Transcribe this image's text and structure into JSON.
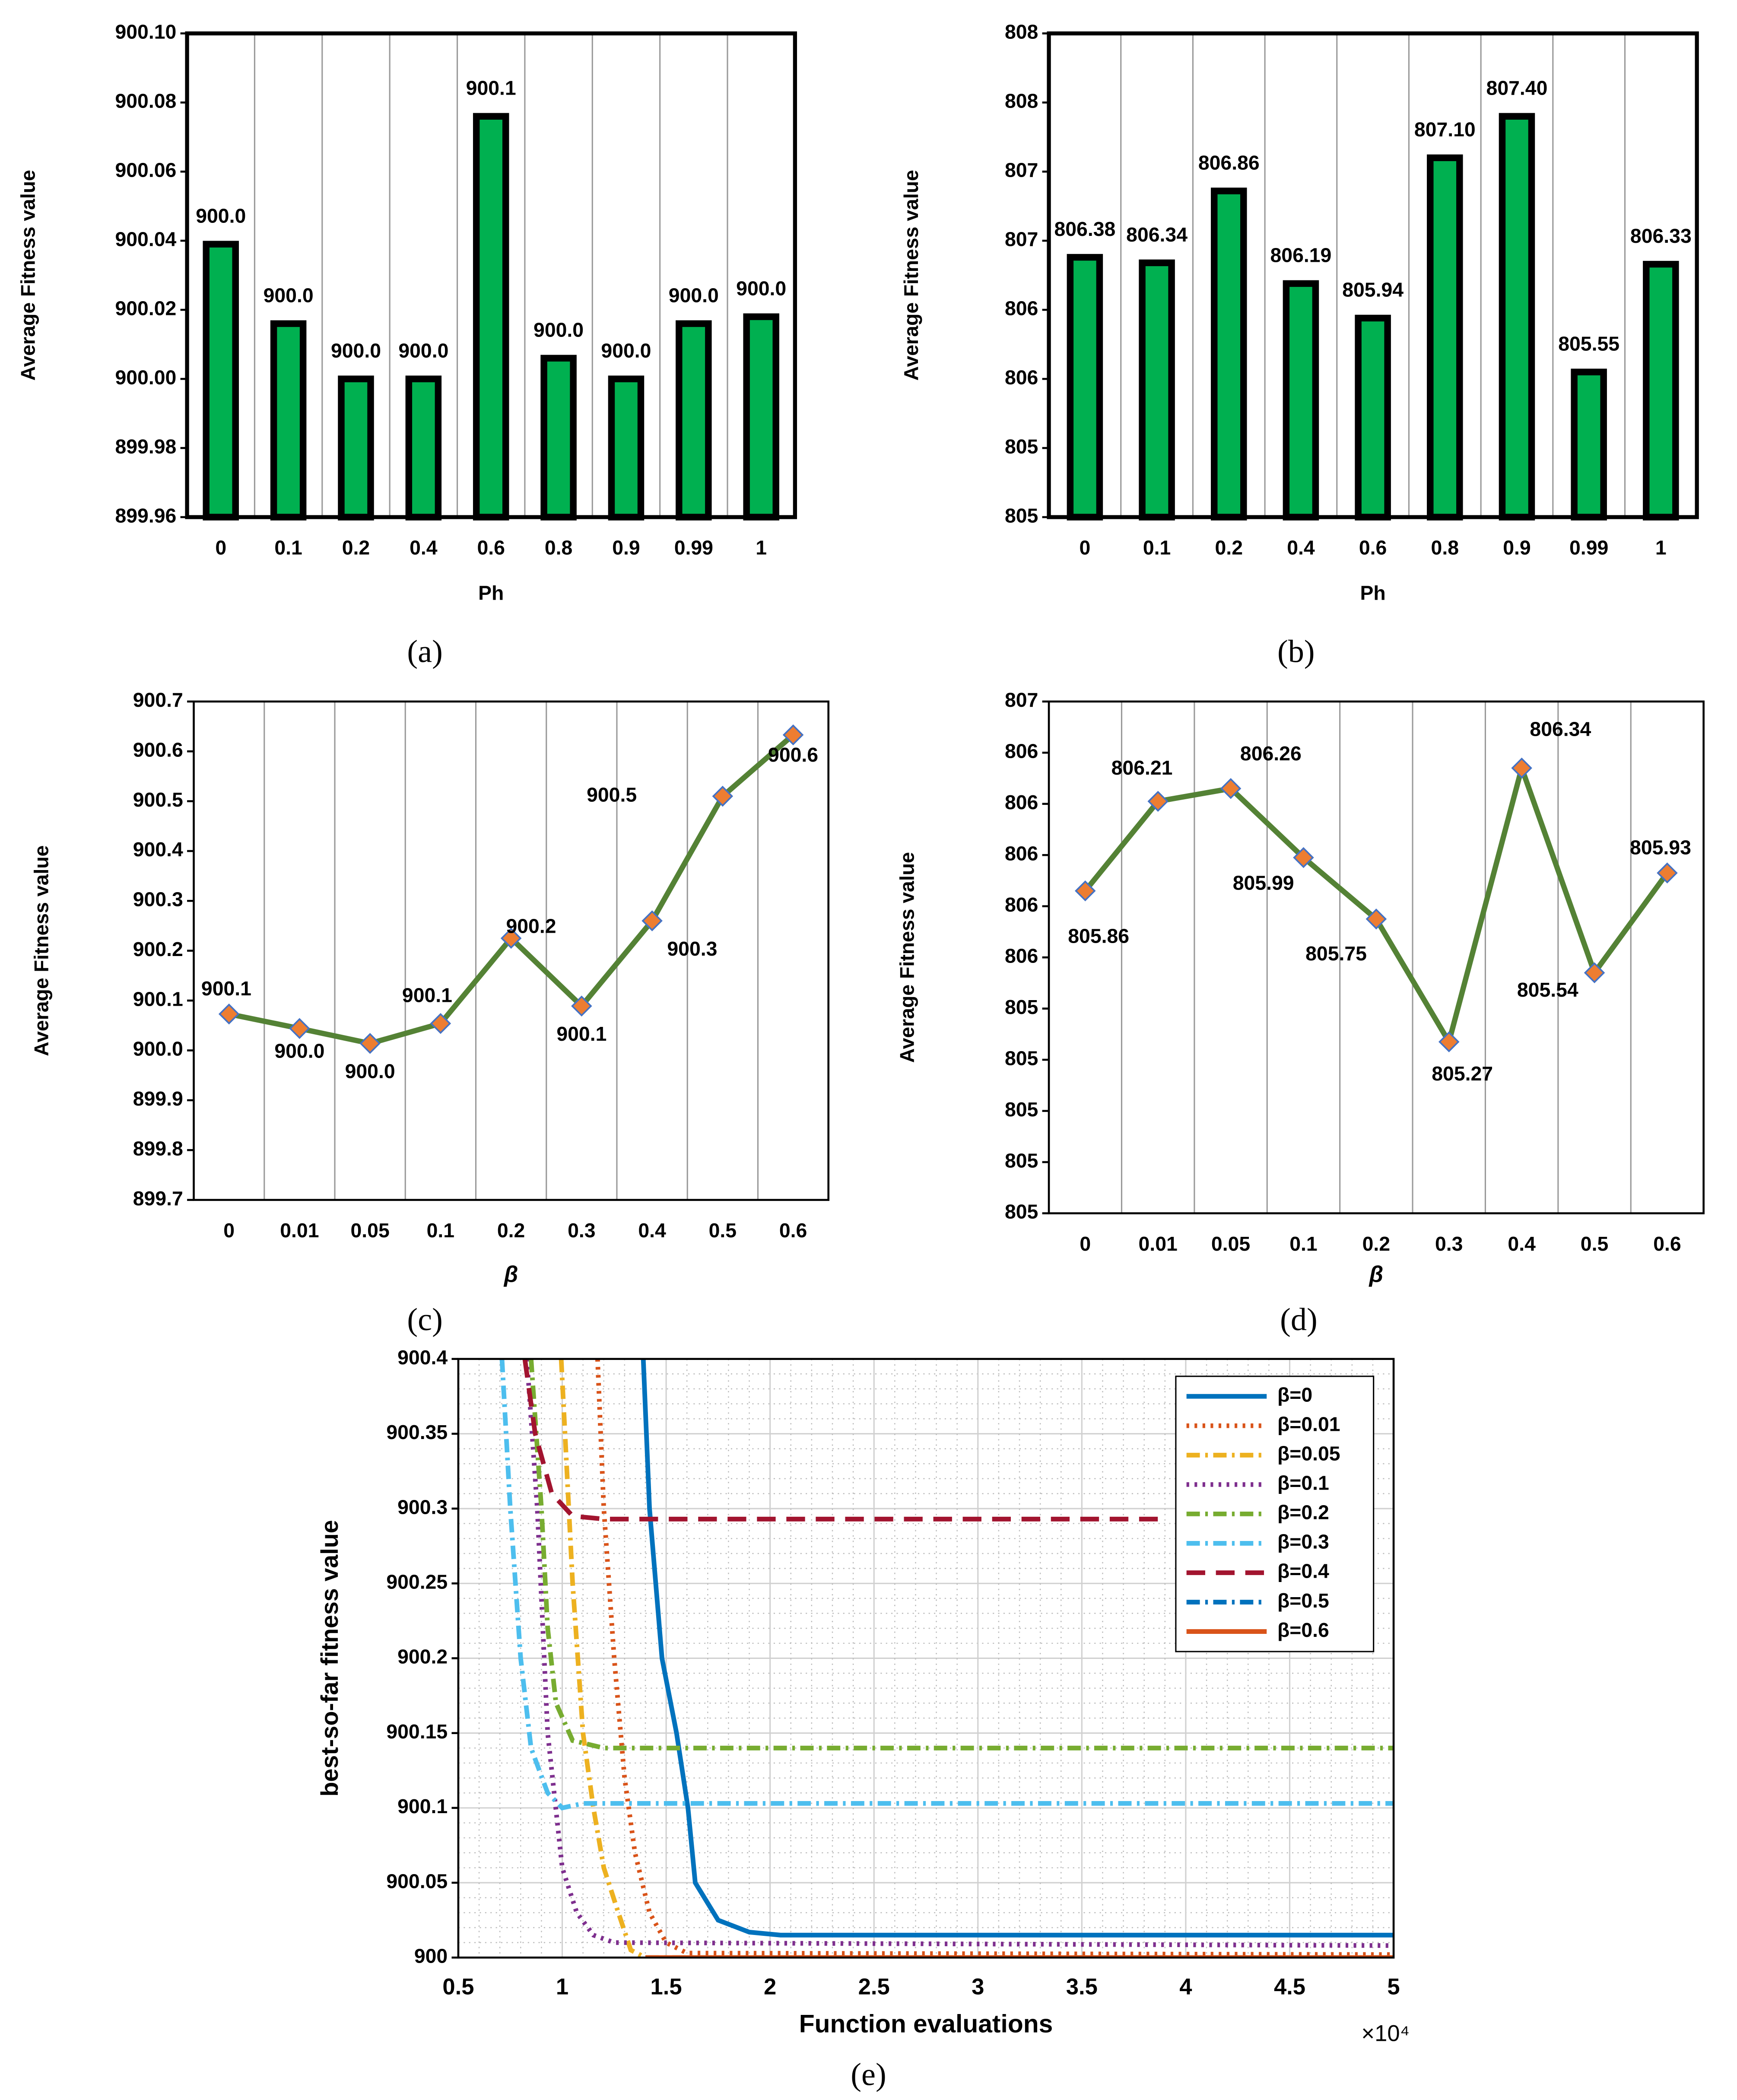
{
  "chart_data": [
    {
      "type": "bar",
      "caption": "(a)",
      "ylabel": "Average Fitness value",
      "xlabel": "Ph",
      "categories": [
        "0",
        "0.1",
        "0.2",
        "0.4",
        "0.6",
        "0.8",
        "0.9",
        "0.99",
        "1"
      ],
      "values": [
        900.039,
        900.016,
        900.0,
        900.0,
        900.076,
        900.006,
        900.0,
        900.016,
        900.018
      ],
      "value_labels": [
        "900.0",
        "900.0",
        "900.0",
        "900.0",
        "900.1",
        "900.0",
        "900.0",
        "900.0",
        "900.0"
      ],
      "color": "#00b050",
      "ylim": [
        899.96,
        900.1
      ],
      "yticks": [
        899.96,
        899.98,
        {
          "value": 900,
          "label": "900.00"
        },
        900.02,
        900.04,
        900.06,
        900.08,
        {
          "value": 900.1,
          "label": "900.10"
        }
      ]
    },
    {
      "type": "bar",
      "caption": "(b)",
      "ylabel": "Average Fitness value",
      "xlabel": "Ph",
      "categories": [
        "0",
        "0.1",
        "0.2",
        "0.4",
        "0.6",
        "0.8",
        "0.9",
        "0.99",
        "1"
      ],
      "values": [
        806.38,
        806.34,
        806.86,
        806.19,
        805.94,
        807.1,
        807.4,
        805.55,
        806.33
      ],
      "value_labels": [
        "806.38",
        "806.34",
        "806.86",
        "806.19",
        "805.94",
        "807.10",
        "807.40",
        "805.55",
        "806.33"
      ],
      "color": "#00b050",
      "ylim": [
        804.5,
        808
      ],
      "yticks": [
        {
          "value": 804.5,
          "label": "805"
        },
        {
          "value": 805,
          "label": "805"
        },
        {
          "value": 805.5,
          "label": "806"
        },
        {
          "value": 806,
          "label": "806"
        },
        {
          "value": 806.5,
          "label": "807"
        },
        {
          "value": 807,
          "label": "807"
        },
        {
          "value": 807.5,
          "label": "808"
        },
        {
          "value": 808,
          "label": "808"
        }
      ]
    },
    {
      "type": "line",
      "caption": "(c)",
      "ylabel": "Average Fitness value",
      "xlabel": "β",
      "categories": [
        "0",
        "0.01",
        "0.05",
        "0.1",
        "0.2",
        "0.3",
        "0.4",
        "0.5",
        "0.6"
      ],
      "values": [
        900.073,
        900.044,
        900.014,
        900.054,
        900.225,
        900.089,
        900.26,
        900.51,
        900.633
      ],
      "value_labels": [
        "900.1",
        "900.0",
        "900.0",
        "900.1",
        "900.2",
        "900.1",
        "900.3",
        "900.5",
        "900.6"
      ],
      "color": "#548235",
      "marker_color": "#ed7d31",
      "ylim": [
        899.7,
        900.7
      ],
      "yticks": [
        899.7,
        899.8,
        899.9,
        {
          "value": 900,
          "label": "900.0"
        },
        900.1,
        900.2,
        900.3,
        900.4,
        900.5,
        900.6,
        900.7
      ]
    },
    {
      "type": "line",
      "caption": "(d)",
      "ylabel": "Average Fitness value",
      "xlabel": "β",
      "categories": [
        "0",
        "0.01",
        "0.05",
        "0.1",
        "0.2",
        "0.3",
        "0.4",
        "0.5",
        "0.6"
      ],
      "values": [
        805.86,
        806.21,
        806.26,
        805.99,
        805.75,
        805.27,
        806.34,
        805.54,
        805.93
      ],
      "color": "#548235",
      "marker_color": "#ed7d31",
      "ylim": [
        804.6,
        806.6
      ],
      "yticks": [
        {
          "value": 804.6,
          "label": "805"
        },
        {
          "value": 804.8,
          "label": "805"
        },
        {
          "value": 805,
          "label": "805"
        },
        {
          "value": 805.2,
          "label": "805"
        },
        {
          "value": 805.4,
          "label": "805"
        },
        {
          "value": 805.6,
          "label": "806"
        },
        {
          "value": 805.8,
          "label": "806"
        },
        {
          "value": 806,
          "label": "806"
        },
        {
          "value": 806.2,
          "label": "806"
        },
        {
          "value": 806.4,
          "label": "806"
        },
        {
          "value": 806.6,
          "label": "807"
        }
      ]
    },
    {
      "type": "curves",
      "caption": "(e)",
      "ylabel": "best-so-far fitness value",
      "xlabel": "Function evaluations",
      "x_multiplier": "×10⁴",
      "xlim": [
        0.5,
        5
      ],
      "xticks": [
        0.5,
        1,
        1.5,
        2,
        2.5,
        3,
        3.5,
        4,
        4.5,
        5
      ],
      "ylim": [
        900,
        900.4
      ],
      "yticks": [
        900,
        900.05,
        900.1,
        900.15,
        900.2,
        900.25,
        900.3,
        900.35,
        900.4
      ],
      "grid": true,
      "minor_grid": true,
      "legend": "upper right",
      "series": [
        {
          "name": "β=0",
          "color": "#0072bd",
          "style": "solid",
          "x": [
            1.39,
            1.42,
            1.48,
            1.55,
            1.605,
            1.64,
            1.75,
            1.9,
            2.05,
            5
          ],
          "values": [
            900.4,
            900.3,
            900.2,
            900.15,
            900.1,
            900.05,
            900.025,
            900.017,
            900.015,
            900.015
          ]
        },
        {
          "name": "β=0.01",
          "color": "#d95319",
          "style": "dotted",
          "x": [
            1.17,
            1.2,
            1.25,
            1.3,
            1.35,
            1.42,
            1.5,
            1.6,
            5
          ],
          "values": [
            900.4,
            900.3,
            900.2,
            900.12,
            900.07,
            900.03,
            900.01,
            900.003,
            900.002
          ]
        },
        {
          "name": "β=0.05",
          "color": "#edb120",
          "style": "dashdot",
          "x": [
            0.995,
            1.05,
            1.1,
            1.15,
            1.2,
            1.27,
            1.33,
            1.4,
            5
          ],
          "values": [
            900.4,
            900.25,
            900.15,
            900.1,
            900.06,
            900.03,
            900.005,
            900.0,
            900.0
          ]
        },
        {
          "name": "β=0.1",
          "color": "#7e2f8e",
          "style": "dotted",
          "x": [
            0.83,
            0.88,
            0.93,
            1.0,
            1.07,
            1.15,
            1.25,
            5
          ],
          "values": [
            900.4,
            900.3,
            900.15,
            900.06,
            900.03,
            900.015,
            900.01,
            900.008
          ]
        },
        {
          "name": "β=0.2",
          "color": "#77ac30",
          "style": "dashdot",
          "x": [
            0.85,
            0.9,
            0.93,
            0.97,
            1.05,
            1.2,
            5
          ],
          "values": [
            900.4,
            900.3,
            900.22,
            900.17,
            900.145,
            900.14,
            900.14
          ]
        },
        {
          "name": "β=0.3",
          "color": "#4dbeee",
          "style": "dashdot",
          "x": [
            0.71,
            0.75,
            0.8,
            0.85,
            0.93,
            1.0,
            1.1,
            5
          ],
          "values": [
            900.4,
            900.3,
            900.2,
            900.14,
            900.11,
            900.1,
            900.103,
            900.103
          ]
        },
        {
          "name": "β=0.4",
          "color": "#a2142f",
          "style": "dashed",
          "x": [
            0.82,
            0.87,
            0.95,
            1.05,
            1.2,
            3.9
          ],
          "values": [
            900.4,
            900.35,
            900.31,
            900.295,
            900.293,
            900.293
          ]
        },
        {
          "name": "β=0.5",
          "color": "#0072bd",
          "style": "dashdot",
          "x": [
            1.4,
            5
          ],
          "values": [
            900.0,
            900.0
          ]
        },
        {
          "name": "β=0.6",
          "color": "#d95319",
          "style": "solid",
          "x": [
            1.4,
            5
          ],
          "values": [
            900.0,
            900.0
          ]
        }
      ]
    }
  ]
}
